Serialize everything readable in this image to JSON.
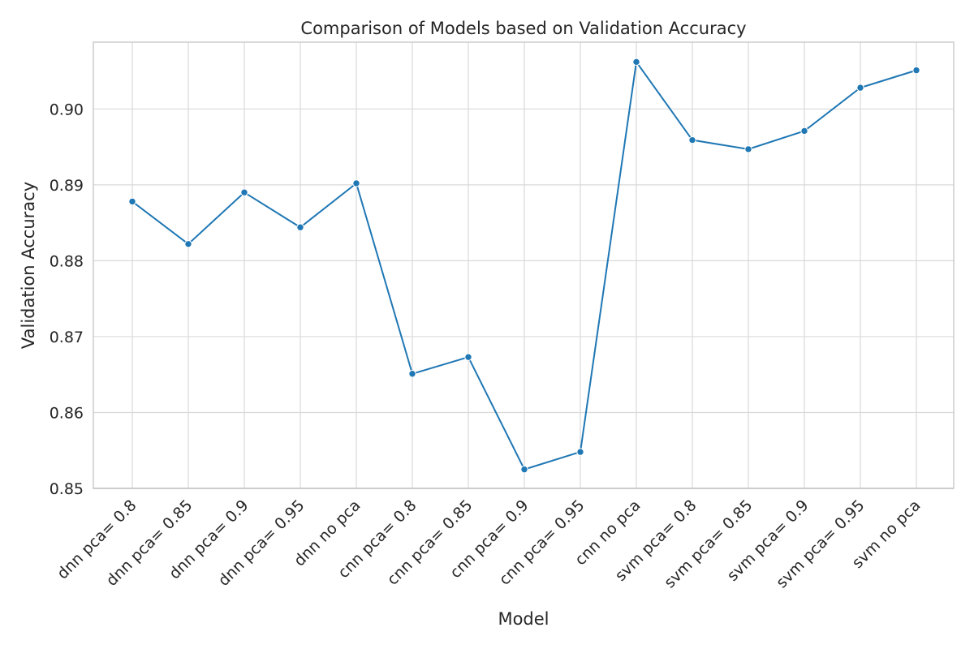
{
  "chart_data": {
    "type": "line",
    "title": "Comparison of Models based on Validation Accuracy",
    "xlabel": "Model",
    "ylabel": "Validation Accuracy",
    "categories": [
      "dnn pca= 0.8",
      "dnn pca= 0.85",
      "dnn pca= 0.9",
      "dnn pca= 0.95",
      "dnn no pca",
      "cnn pca= 0.8",
      "cnn pca= 0.85",
      "cnn pca= 0.9",
      "cnn pca= 0.95",
      "cnn no pca",
      "svm pca= 0.8",
      "svm pca= 0.85",
      "svm pca= 0.9",
      "svm pca= 0.95",
      "svm no pca"
    ],
    "values": [
      0.8878,
      0.8822,
      0.889,
      0.8844,
      0.8902,
      0.8651,
      0.8673,
      0.8525,
      0.8548,
      0.9062,
      0.8959,
      0.8947,
      0.8971,
      0.9028,
      0.9051
    ],
    "yticks": [
      "0.85",
      "0.86",
      "0.87",
      "0.88",
      "0.89",
      "0.90"
    ],
    "ylim": [
      0.85,
      0.9088
    ],
    "grid": true,
    "marker": "circle",
    "line_color": "#1f77b4"
  }
}
